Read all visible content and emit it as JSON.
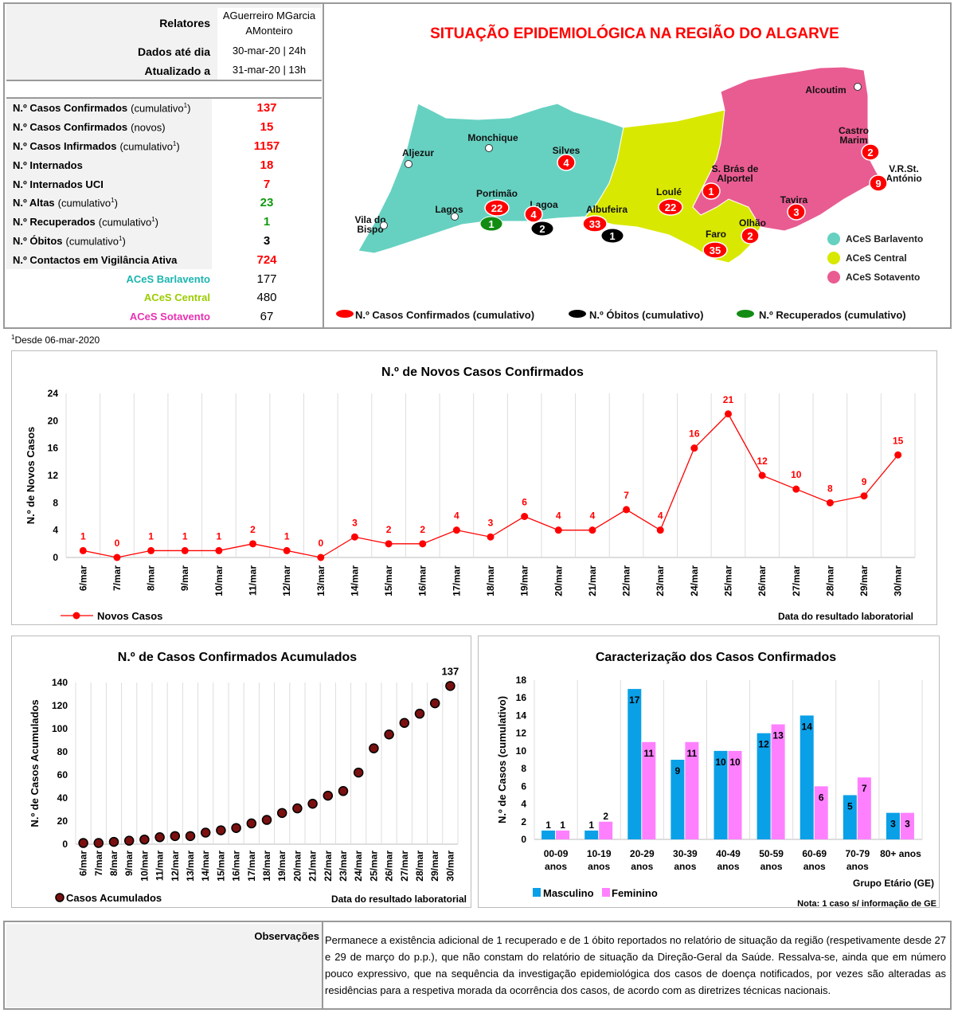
{
  "header": {
    "relatores_label": "Relatores",
    "relatores_value_1": "AGuerreiro MGarcia",
    "relatores_value_2": "AMonteiro",
    "dados_label": "Dados até dia",
    "dados_value": "30-mar-20 | 24h",
    "atualizado_label": "Atualizado a",
    "atualizado_value": "31-mar-20 | 13h"
  },
  "stats": [
    {
      "bold": "N.º Casos Confirmados",
      "note": "(cumulativo",
      "sup": "1",
      "tail": ")",
      "value": "137",
      "color": "#ff0000"
    },
    {
      "bold": "N.º Casos Confirmados",
      "note": "(novos)",
      "sup": "",
      "tail": "",
      "value": "15",
      "color": "#ff0000"
    },
    {
      "bold": "N.º Casos Infirmados",
      "note": "(cumulativo",
      "sup": "1",
      "tail": ")",
      "value": "1157",
      "color": "#ff0000"
    },
    {
      "bold": "N.º Internados",
      "note": "",
      "sup": "",
      "tail": "",
      "value": "18",
      "color": "#ff0000"
    },
    {
      "bold": "N.º Internados UCI",
      "note": "",
      "sup": "",
      "tail": "",
      "value": "7",
      "color": "#ff0000"
    },
    {
      "bold": "N.º Altas",
      "note": "(cumulativo",
      "sup": "1",
      "tail": ")",
      "value": "23",
      "color": "#109a10"
    },
    {
      "bold": "N.º Recuperados",
      "note": "(cumulativo",
      "sup": "1",
      "tail": ")",
      "value": "1",
      "color": "#109a10"
    },
    {
      "bold": "N.º Óbitos",
      "note": "(cumulativo",
      "sup": "1",
      "tail": ")",
      "value": "3",
      "color": "#000000"
    },
    {
      "bold": "N.º Contactos em Vigilância Ativa",
      "note": "",
      "sup": "",
      "tail": "",
      "value": "724",
      "color": "#ff0000"
    }
  ],
  "aces": [
    {
      "label": "ACeS Barlavento",
      "value": "177",
      "color": "#1bb5b0"
    },
    {
      "label": "ACeS Central",
      "value": "480",
      "color": "#9ccc00"
    },
    {
      "label": "ACeS Sotavento",
      "value": "67",
      "color": "#e832b0"
    }
  ],
  "footnote": {
    "sup": "1",
    "text": "Desde 06-mar-2020"
  },
  "map": {
    "title": "SITUAÇÃO EPIDEMIOLÓGICA NA REGIÃO DO ALGARVE",
    "colors": {
      "barlavento": "#66d1c1",
      "central": "#d9e800",
      "sotavento": "#e95c91",
      "confirmed": "#ff0000",
      "deaths": "#000000",
      "recovered": "#128c12"
    },
    "municipalities": [
      {
        "name": "Aljezur"
      },
      {
        "name": "Monchique"
      },
      {
        "name": "Silves",
        "confirmed": "4"
      },
      {
        "name": "Portimão",
        "confirmed": "22",
        "recovered": "1"
      },
      {
        "name": "Lagoa",
        "confirmed": "4",
        "deaths": "2"
      },
      {
        "name": "Lagos"
      },
      {
        "name": "Vila do",
        "name2": "Bispo"
      },
      {
        "name": "Albufeira",
        "confirmed": "33",
        "deaths": "1"
      },
      {
        "name": "Loulé",
        "confirmed": "22"
      },
      {
        "name": "S. Brás de",
        "name2": "Alportel",
        "confirmed": "1"
      },
      {
        "name": "Faro",
        "confirmed": "35"
      },
      {
        "name": "Olhão",
        "confirmed": "2"
      },
      {
        "name": "Tavira",
        "confirmed": "3"
      },
      {
        "name": "Castro",
        "name2": "Marim",
        "confirmed": "2"
      },
      {
        "name": "V.R.St.",
        "name2": "António",
        "confirmed": "9"
      },
      {
        "name": "Alcoutim"
      }
    ],
    "region_legend": [
      "ACeS Barlavento",
      "ACeS Central",
      "ACeS Sotavento"
    ],
    "marker_legend": [
      "N.º Casos Confirmados (cumulativo)",
      "N.º Óbitos (cumulativo)",
      "N.º Recuperados (cumulativo)"
    ]
  },
  "chart_data": [
    {
      "type": "line",
      "title": "N.º de Novos Casos Confirmados",
      "xlabel": "Data do resultado laboratorial",
      "ylabel": "N.º de Novos Casos",
      "ylim": [
        0,
        24
      ],
      "yticks": [
        0,
        4,
        8,
        12,
        16,
        20,
        24
      ],
      "grid": "vertical",
      "legend": "bottom-left",
      "color": "#ff0000",
      "categories": [
        "6/mar",
        "7/mar",
        "8/mar",
        "9/mar",
        "10/mar",
        "11/mar",
        "12/mar",
        "13/mar",
        "14/mar",
        "15/mar",
        "16/mar",
        "17/mar",
        "18/mar",
        "19/mar",
        "20/mar",
        "21/mar",
        "22/mar",
        "23/mar",
        "24/mar",
        "25/mar",
        "26/mar",
        "27/mar",
        "28/mar",
        "29/mar",
        "30/mar"
      ],
      "series": [
        {
          "name": "Novos Casos",
          "values": [
            1,
            0,
            1,
            1,
            1,
            2,
            1,
            0,
            3,
            2,
            2,
            4,
            3,
            6,
            4,
            4,
            7,
            4,
            16,
            21,
            12,
            10,
            8,
            9,
            15
          ]
        }
      ]
    },
    {
      "type": "scatter",
      "title": "N.º de Casos Confirmados Acumulados",
      "xlabel": "Data do resultado laboratorial",
      "ylabel": "N.º de Casos Acumulados",
      "ylim": [
        0,
        140
      ],
      "yticks": [
        0,
        20,
        40,
        60,
        80,
        100,
        120,
        140
      ],
      "grid": "vertical",
      "legend": "bottom-left",
      "last_label": "137",
      "categories": [
        "6/mar",
        "7/mar",
        "8/mar",
        "9/mar",
        "10/mar",
        "11/mar",
        "12/mar",
        "13/mar",
        "14/mar",
        "15/mar",
        "16/mar",
        "17/mar",
        "18/mar",
        "19/mar",
        "20/mar",
        "21/mar",
        "22/mar",
        "23/mar",
        "24/mar",
        "25/mar",
        "26/mar",
        "27/mar",
        "28/mar",
        "29/mar",
        "30/mar"
      ],
      "series": [
        {
          "name": "Casos Acumulados",
          "values": [
            1,
            1,
            2,
            3,
            4,
            6,
            7,
            7,
            10,
            12,
            14,
            18,
            21,
            27,
            31,
            35,
            42,
            46,
            62,
            83,
            95,
            105,
            113,
            122,
            137
          ]
        }
      ]
    },
    {
      "type": "bar",
      "title": "Caracterização dos Casos Confirmados",
      "xlabel": "Grupo Etário (GE)",
      "ylabel": "N.º de Casos (cumulativo)",
      "ylim": [
        0,
        18
      ],
      "yticks": [
        0,
        2,
        4,
        6,
        8,
        10,
        12,
        14,
        16,
        18
      ],
      "grid": "vertical",
      "legend": "bottom-left",
      "note": "Nota: 1 caso s/ informação de GE",
      "categories": [
        [
          "00-09",
          "anos"
        ],
        [
          "10-19",
          "anos"
        ],
        [
          "20-29",
          "anos"
        ],
        [
          "30-39",
          "anos"
        ],
        [
          "40-49",
          "anos"
        ],
        [
          "50-59",
          "anos"
        ],
        [
          "60-69",
          "anos"
        ],
        [
          "70-79",
          "anos"
        ],
        [
          "80+ anos",
          ""
        ]
      ],
      "series": [
        {
          "name": "Masculino",
          "color": "#0aa0e8",
          "values": [
            1,
            1,
            17,
            9,
            10,
            12,
            14,
            5,
            3
          ]
        },
        {
          "name": "Feminino",
          "color": "#ff80ff",
          "values": [
            1,
            2,
            11,
            11,
            10,
            13,
            6,
            7,
            3
          ]
        }
      ]
    }
  ],
  "observations": {
    "label": "Observações",
    "text": "Permanece a existência adicional de 1 recuperado e de 1 óbito reportados no relatório de situação da região (respetivamente desde 27 e 29 de março do p.p.), que não constam do relatório de situação da Direção-Geral da Saúde. Ressalva-se, ainda que em número pouco expressivo, que na sequência da investigação epidemiológica dos casos de doença notificados, por vezes são alteradas as residências para a respetiva morada da ocorrência dos casos, de acordo com as diretrizes técnicas nacionais."
  }
}
